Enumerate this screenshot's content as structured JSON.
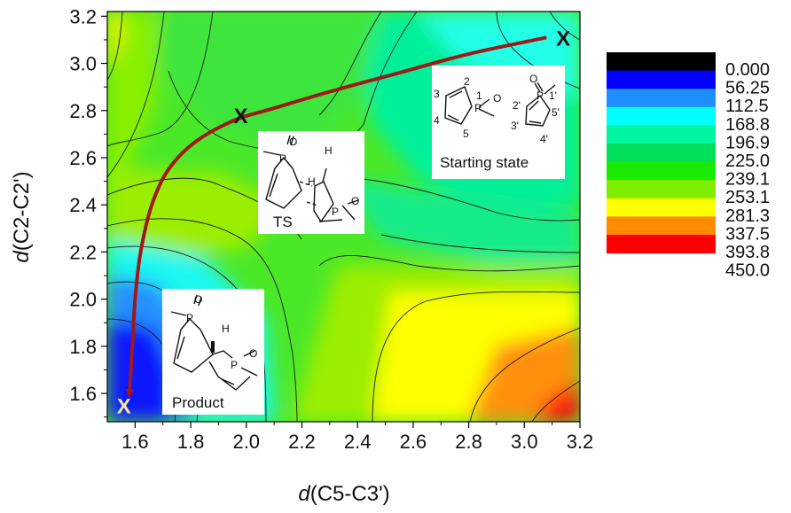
{
  "chart_data": {
    "type": "contour",
    "xlabel": {
      "italic": "d",
      "rest": "(C5-C3')"
    },
    "ylabel": {
      "italic": "d",
      "rest": "(C2-C2')"
    },
    "xlim": [
      1.5,
      3.2
    ],
    "ylim": [
      1.48,
      3.22
    ],
    "x_ticks": [
      "1.6",
      "1.8",
      "2.0",
      "2.2",
      "2.4",
      "2.6",
      "2.8",
      "3.0",
      "3.2"
    ],
    "y_ticks": [
      "1.6",
      "1.8",
      "2.0",
      "2.2",
      "2.4",
      "2.6",
      "2.8",
      "3.0",
      "3.2"
    ],
    "x_tick_values": [
      1.6,
      1.8,
      2.0,
      2.2,
      2.4,
      2.6,
      2.8,
      3.0,
      3.2
    ],
    "y_tick_values": [
      1.6,
      1.8,
      2.0,
      2.2,
      2.4,
      2.6,
      2.8,
      3.0,
      3.2
    ],
    "legend": {
      "placement": "right",
      "levels": [
        "0.000",
        "56.25",
        "112.5",
        "168.8",
        "196.9",
        "225.0",
        "239.1",
        "253.1",
        "281.3",
        "337.5",
        "393.8",
        "450.0"
      ],
      "colors": [
        "#000000",
        "#0000ff",
        "#1e8fff",
        "#00ffff",
        "#00f5a0",
        "#00e05a",
        "#19ea00",
        "#7eed00",
        "#ffff00",
        "#ff8c00",
        "#ff0000"
      ]
    },
    "reaction_path": {
      "color": "#a01818",
      "points": [
        [
          3.08,
          3.11
        ],
        [
          2.8,
          3.04
        ],
        [
          2.55,
          2.96
        ],
        [
          2.3,
          2.88
        ],
        [
          2.1,
          2.81
        ],
        [
          1.96,
          2.76
        ],
        [
          1.82,
          2.67
        ],
        [
          1.72,
          2.55
        ],
        [
          1.66,
          2.4
        ],
        [
          1.62,
          2.2
        ],
        [
          1.6,
          2.0
        ],
        [
          1.59,
          1.8
        ],
        [
          1.58,
          1.6
        ]
      ]
    },
    "markers": [
      {
        "label": "X",
        "x": 3.14,
        "y": 3.11,
        "color": "#111111"
      },
      {
        "label": "X",
        "x": 1.98,
        "y": 2.78,
        "color": "#111111"
      },
      {
        "label": "X",
        "x": 1.56,
        "y": 1.55,
        "color": "#f2e6a0"
      }
    ],
    "insets": {
      "starting_state": "Starting state",
      "ts": "TS",
      "product": "Product",
      "atom_labels": [
        "1",
        "2",
        "3",
        "4",
        "5",
        "1'",
        "2'",
        "3'",
        "4'",
        "5'"
      ],
      "atoms": [
        "P",
        "O",
        "H"
      ]
    }
  }
}
